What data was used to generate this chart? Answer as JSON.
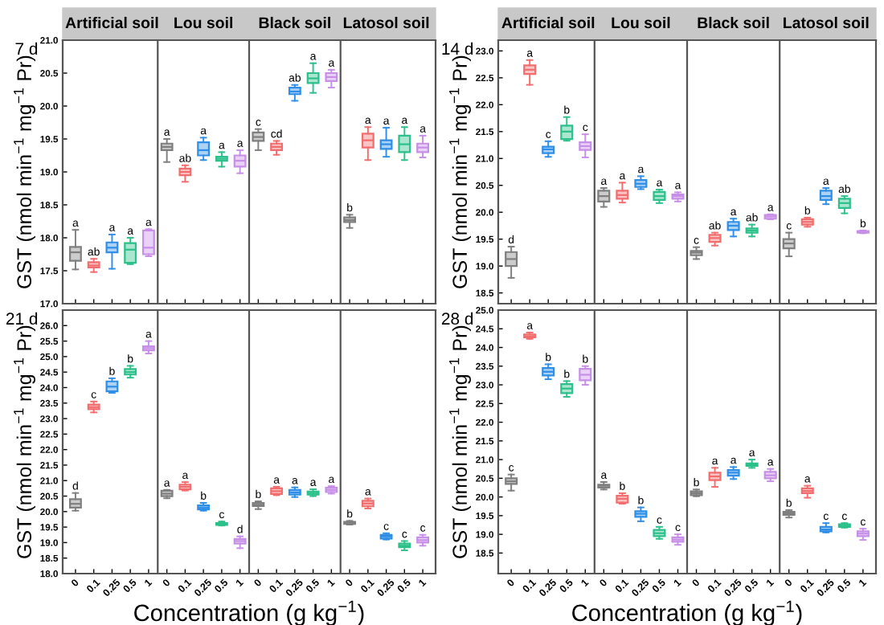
{
  "chart_data": [
    {
      "type": "box",
      "subtitle": "7 d",
      "ylabel": "GST (nmol min$^{−1}$ mg$^{−1}$ Pr)",
      "annotations": [
        "Artificial soil",
        "Lou soil",
        "Black soil",
        "Latosol soil"
      ],
      "categories": [
        null,
        null,
        null,
        null,
        null,
        null,
        null,
        null,
        null,
        null,
        null,
        null,
        null,
        null,
        null,
        null,
        null,
        null,
        null,
        null
      ],
      "colors": [
        "#7f7f7f",
        "#f26d6d",
        "#2f8fe8",
        "#2cc08a",
        "#c88fe8",
        "#7f7f7f",
        "#f26d6d",
        "#2f8fe8",
        "#2cc08a",
        "#c88fe8",
        "#7f7f7f",
        "#f26d6d",
        "#2f8fe8",
        "#2cc08a",
        "#c88fe8",
        "#7f7f7f",
        "#f26d6d",
        "#2f8fe8",
        "#2cc08a",
        "#c88fe8"
      ],
      "ylim": [
        17.0,
        21.0
      ],
      "yticks": [
        {
          "value": 17,
          "label": "17.0"
        },
        17.5,
        {
          "value": 18,
          "label": "18.0"
        },
        18.5,
        {
          "value": 19,
          "label": "19.0"
        },
        19.5,
        {
          "value": 20,
          "label": "20.0"
        },
        20.5,
        {
          "value": 21,
          "label": "21.0"
        }
      ],
      "tick_labels": "y",
      "value_labels": [
        "a",
        "ab",
        "a",
        "a",
        "a",
        "a",
        "ab",
        "a",
        "a",
        "a",
        "c",
        "cd",
        "ab",
        "a",
        "a",
        "b",
        "a",
        "a",
        "a",
        "a"
      ],
      "boxes": [
        {
          "low": 17.52,
          "q1": 17.65,
          "median": 17.78,
          "q3": 17.86,
          "high": 18.12
        },
        {
          "low": 17.48,
          "q1": 17.55,
          "median": 17.58,
          "q3": 17.63,
          "high": 17.68
        },
        {
          "low": 17.53,
          "q1": 17.78,
          "median": 17.85,
          "q3": 17.93,
          "high": 18.05
        },
        {
          "low": 17.6,
          "q1": 17.62,
          "median": 17.82,
          "q3": 17.92,
          "high": 18.0
        },
        {
          "low": 17.72,
          "q1": 17.75,
          "median": 17.85,
          "q3": 18.11,
          "high": 18.13
        },
        {
          "low": 19.15,
          "q1": 19.33,
          "median": 19.38,
          "q3": 19.43,
          "high": 19.5
        },
        {
          "low": 18.85,
          "q1": 18.95,
          "median": 19.0,
          "q3": 19.05,
          "high": 19.1
        },
        {
          "low": 19.18,
          "q1": 19.25,
          "median": 19.33,
          "q3": 19.45,
          "high": 19.52
        },
        {
          "low": 19.08,
          "q1": 19.17,
          "median": 19.2,
          "q3": 19.23,
          "high": 19.3
        },
        {
          "low": 18.98,
          "q1": 19.08,
          "median": 19.17,
          "q3": 19.25,
          "high": 19.33
        },
        {
          "low": 19.33,
          "q1": 19.47,
          "median": 19.53,
          "q3": 19.6,
          "high": 19.65
        },
        {
          "low": 19.26,
          "q1": 19.33,
          "median": 19.38,
          "q3": 19.43,
          "high": 19.47
        },
        {
          "low": 20.08,
          "q1": 20.18,
          "median": 20.22,
          "q3": 20.28,
          "high": 20.32
        },
        {
          "low": 20.2,
          "q1": 20.35,
          "median": 20.42,
          "q3": 20.5,
          "high": 20.65
        },
        {
          "low": 20.28,
          "q1": 20.38,
          "median": 20.44,
          "q3": 20.5,
          "high": 20.55
        },
        {
          "low": 18.15,
          "q1": 18.24,
          "median": 18.27,
          "q3": 18.31,
          "high": 18.35
        },
        {
          "low": 19.18,
          "q1": 19.37,
          "median": 19.48,
          "q3": 19.58,
          "high": 19.68
        },
        {
          "low": 19.23,
          "q1": 19.35,
          "median": 19.42,
          "q3": 19.48,
          "high": 19.67
        },
        {
          "low": 19.18,
          "q1": 19.3,
          "median": 19.42,
          "q3": 19.55,
          "high": 19.68
        },
        {
          "low": 19.22,
          "q1": 19.3,
          "median": 19.37,
          "q3": 19.43,
          "high": 19.55
        }
      ]
    },
    {
      "type": "box",
      "subtitle": "14 d",
      "ylabel": "GST (nmol min$^{−1}$ mg$^{−1}$ Pr)",
      "annotations": [
        "Artificial soil",
        "Lou soil",
        "Black soil",
        "Latosol soil"
      ],
      "categories": [
        null,
        null,
        null,
        null,
        null,
        null,
        null,
        null,
        null,
        null,
        null,
        null,
        null,
        null,
        null,
        null,
        null,
        null,
        null,
        null
      ],
      "colors": [
        "#7f7f7f",
        "#f26d6d",
        "#2f8fe8",
        "#2cc08a",
        "#c88fe8",
        "#7f7f7f",
        "#f26d6d",
        "#2f8fe8",
        "#2cc08a",
        "#c88fe8",
        "#7f7f7f",
        "#f26d6d",
        "#2f8fe8",
        "#2cc08a",
        "#c88fe8",
        "#7f7f7f",
        "#f26d6d",
        "#2f8fe8",
        "#2cc08a",
        "#c88fe8"
      ],
      "ylim": [
        18.3,
        23.2
      ],
      "yticks": [
        18.5,
        {
          "value": 19,
          "label": "19.0"
        },
        19.5,
        {
          "value": 20,
          "label": "20.0"
        },
        20.5,
        {
          "value": 21,
          "label": "21.0"
        },
        21.5,
        {
          "value": 22,
          "label": "22.0"
        },
        22.5,
        {
          "value": 23,
          "label": "23.0"
        }
      ],
      "tick_labels": "y",
      "value_labels": [
        "d",
        "a",
        "c",
        "b",
        "c",
        "a",
        "a",
        "a",
        "a",
        "a",
        "c",
        "ab",
        "a",
        "ab",
        "a",
        "c",
        "b",
        "a",
        "ab",
        "b"
      ],
      "boxes": [
        {
          "low": 18.78,
          "q1": 19.0,
          "median": 19.13,
          "q3": 19.26,
          "high": 19.36
        },
        {
          "low": 22.37,
          "q1": 22.57,
          "median": 22.65,
          "q3": 22.73,
          "high": 22.83
        },
        {
          "low": 21.03,
          "q1": 21.1,
          "median": 21.17,
          "q3": 21.22,
          "high": 21.32
        },
        {
          "low": 21.33,
          "q1": 21.36,
          "median": 21.5,
          "q3": 21.61,
          "high": 21.77
        },
        {
          "low": 21.02,
          "q1": 21.16,
          "median": 21.23,
          "q3": 21.3,
          "high": 21.45
        },
        {
          "low": 20.1,
          "q1": 20.2,
          "median": 20.3,
          "q3": 20.4,
          "high": 20.45
        },
        {
          "low": 20.18,
          "q1": 20.25,
          "median": 20.32,
          "q3": 20.4,
          "high": 20.55
        },
        {
          "low": 20.43,
          "q1": 20.47,
          "median": 20.53,
          "q3": 20.6,
          "high": 20.67
        },
        {
          "low": 20.17,
          "q1": 20.23,
          "median": 20.3,
          "q3": 20.38,
          "high": 20.42
        },
        {
          "low": 20.2,
          "q1": 20.25,
          "median": 20.3,
          "q3": 20.33,
          "high": 20.37
        },
        {
          "low": 19.13,
          "q1": 19.2,
          "median": 19.25,
          "q3": 19.28,
          "high": 19.35
        },
        {
          "low": 19.38,
          "q1": 19.45,
          "median": 19.52,
          "q3": 19.58,
          "high": 19.62
        },
        {
          "low": 19.55,
          "q1": 19.67,
          "median": 19.75,
          "q3": 19.82,
          "high": 19.88
        },
        {
          "low": 19.55,
          "q1": 19.62,
          "median": 19.66,
          "q3": 19.7,
          "high": 19.77
        },
        {
          "low": 19.87,
          "q1": 19.88,
          "median": 19.92,
          "q3": 19.95,
          "high": 19.96
        },
        {
          "low": 19.18,
          "q1": 19.33,
          "median": 19.42,
          "q3": 19.5,
          "high": 19.62
        },
        {
          "low": 19.73,
          "q1": 19.77,
          "median": 19.82,
          "q3": 19.87,
          "high": 19.9
        },
        {
          "low": 20.15,
          "q1": 20.23,
          "median": 20.3,
          "q3": 20.4,
          "high": 20.45
        },
        {
          "low": 19.98,
          "q1": 20.08,
          "median": 20.17,
          "q3": 20.25,
          "high": 20.3
        },
        {
          "low": 19.61,
          "q1": 19.62,
          "median": 19.63,
          "q3": 19.65,
          "high": 19.66
        }
      ]
    },
    {
      "type": "box",
      "subtitle": "21 d",
      "ylabel": "GST (nmol min$^{−1}$ mg$^{−1}$ Pr)",
      "xlabel": "Concentration (g kg$^{−1}$)",
      "categories": [
        "0",
        "0.1",
        "0.25",
        "0.5",
        "1",
        "0",
        "0.1",
        "0.25",
        "0.5",
        "1",
        "0",
        "0.1",
        "0.25",
        "0.5",
        "1",
        "0",
        "0.1",
        "0.25",
        "0.5",
        "1"
      ],
      "colors": [
        "#7f7f7f",
        "#f26d6d",
        "#2f8fe8",
        "#2cc08a",
        "#c88fe8",
        "#7f7f7f",
        "#f26d6d",
        "#2f8fe8",
        "#2cc08a",
        "#c88fe8",
        "#7f7f7f",
        "#f26d6d",
        "#2f8fe8",
        "#2cc08a",
        "#c88fe8",
        "#7f7f7f",
        "#f26d6d",
        "#2f8fe8",
        "#2cc08a",
        "#c88fe8"
      ],
      "ylim": [
        18.0,
        26.5
      ],
      "yticks": [
        {
          "value": 18,
          "label": "18.0"
        },
        18.5,
        {
          "value": 19,
          "label": "19.0"
        },
        19.5,
        {
          "value": 20,
          "label": "20.0"
        },
        20.5,
        {
          "value": 21,
          "label": "21.0"
        },
        21.5,
        {
          "value": 22,
          "label": "22.0"
        },
        22.5,
        {
          "value": 23,
          "label": "23.0"
        },
        23.5,
        {
          "value": 24,
          "label": "24.0"
        },
        24.5,
        {
          "value": 25,
          "label": "25.0"
        },
        25.5,
        {
          "value": 26,
          "label": "26.0"
        }
      ],
      "value_labels": [
        "d",
        "c",
        "b",
        "b",
        "a",
        "a",
        "a",
        "b",
        "c",
        "d",
        "b",
        "a",
        "a",
        "a",
        "a",
        "b",
        "a",
        "c",
        "c",
        "c"
      ],
      "boxes": [
        {
          "low": 20.03,
          "q1": 20.13,
          "median": 20.25,
          "q3": 20.4,
          "high": 20.6
        },
        {
          "low": 23.2,
          "q1": 23.3,
          "median": 23.37,
          "q3": 23.45,
          "high": 23.55
        },
        {
          "low": 23.83,
          "q1": 23.88,
          "median": 24.03,
          "q3": 24.2,
          "high": 24.3
        },
        {
          "low": 24.32,
          "q1": 24.42,
          "median": 24.5,
          "q3": 24.6,
          "high": 24.7
        },
        {
          "low": 25.1,
          "q1": 25.2,
          "median": 25.27,
          "q3": 25.33,
          "high": 25.5
        },
        {
          "low": 20.43,
          "q1": 20.5,
          "median": 20.58,
          "q3": 20.67,
          "high": 20.7
        },
        {
          "low": 20.68,
          "q1": 20.72,
          "median": 20.8,
          "q3": 20.87,
          "high": 20.95
        },
        {
          "low": 20.03,
          "q1": 20.07,
          "median": 20.13,
          "q3": 20.2,
          "high": 20.28
        },
        {
          "low": 19.55,
          "q1": 19.57,
          "median": 19.6,
          "q3": 19.63,
          "high": 19.68
        },
        {
          "low": 18.82,
          "q1": 18.97,
          "median": 19.05,
          "q3": 19.12,
          "high": 19.2
        },
        {
          "low": 20.08,
          "q1": 20.18,
          "median": 20.22,
          "q3": 20.28,
          "high": 20.33
        },
        {
          "low": 20.53,
          "q1": 20.57,
          "median": 20.66,
          "q3": 20.75,
          "high": 20.8
        },
        {
          "low": 20.47,
          "q1": 20.55,
          "median": 20.62,
          "q3": 20.7,
          "high": 20.78
        },
        {
          "low": 20.5,
          "q1": 20.55,
          "median": 20.6,
          "q3": 20.65,
          "high": 20.72
        },
        {
          "low": 20.58,
          "q1": 20.63,
          "median": 20.7,
          "q3": 20.77,
          "high": 20.82
        },
        {
          "low": 19.58,
          "q1": 19.6,
          "median": 19.63,
          "q3": 19.67,
          "high": 19.7
        },
        {
          "low": 20.1,
          "q1": 20.17,
          "median": 20.26,
          "q3": 20.35,
          "high": 20.42
        },
        {
          "low": 19.1,
          "q1": 19.13,
          "median": 19.2,
          "q3": 19.25,
          "high": 19.3
        },
        {
          "low": 18.75,
          "q1": 18.85,
          "median": 18.9,
          "q3": 18.97,
          "high": 19.05
        },
        {
          "low": 18.9,
          "q1": 19.0,
          "median": 19.08,
          "q3": 19.17,
          "high": 19.25
        }
      ]
    },
    {
      "type": "box",
      "subtitle": "28 d",
      "ylabel": "GST (nmol min$^{−1}$ mg$^{−1}$ Pr)",
      "xlabel": "Concentration (g kg$^{−1}$)",
      "categories": [
        "0",
        "0.1",
        "0.25",
        "0.5",
        "1",
        "0",
        "0.1",
        "0.25",
        "0.5",
        "1",
        "0",
        "0.1",
        "0.25",
        "0.5",
        "1",
        "0",
        "0.1",
        "0.25",
        "0.5",
        "1"
      ],
      "colors": [
        "#7f7f7f",
        "#f26d6d",
        "#2f8fe8",
        "#2cc08a",
        "#c88fe8",
        "#7f7f7f",
        "#f26d6d",
        "#2f8fe8",
        "#2cc08a",
        "#c88fe8",
        "#7f7f7f",
        "#f26d6d",
        "#2f8fe8",
        "#2cc08a",
        "#c88fe8",
        "#7f7f7f",
        "#f26d6d",
        "#2f8fe8",
        "#2cc08a",
        "#c88fe8"
      ],
      "ylim": [
        17.95,
        25.0
      ],
      "yticks": [
        18.5,
        {
          "value": 19,
          "label": "19.0"
        },
        19.5,
        {
          "value": 20,
          "label": "20.0"
        },
        20.5,
        {
          "value": 21,
          "label": "21.0"
        },
        21.5,
        {
          "value": 22,
          "label": "22.0"
        },
        22.5,
        {
          "value": 23,
          "label": "23.0"
        },
        23.5,
        {
          "value": 24,
          "label": "24.0"
        },
        24.5,
        {
          "value": 25,
          "label": "25.0"
        }
      ],
      "value_labels": [
        "c",
        "a",
        "b",
        "b",
        "b",
        "a",
        "b",
        "b",
        "c",
        "c",
        "b",
        "a",
        "a",
        "a",
        "a",
        "b",
        "a",
        "c",
        "c",
        "c"
      ],
      "boxes": [
        {
          "low": 20.17,
          "q1": 20.35,
          "median": 20.42,
          "q3": 20.5,
          "high": 20.6
        },
        {
          "low": 24.23,
          "q1": 24.27,
          "median": 24.3,
          "q3": 24.35,
          "high": 24.4
        },
        {
          "low": 23.15,
          "q1": 23.25,
          "median": 23.35,
          "q3": 23.45,
          "high": 23.55
        },
        {
          "low": 22.68,
          "q1": 22.78,
          "median": 22.9,
          "q3": 23.02,
          "high": 23.1
        },
        {
          "low": 23.0,
          "q1": 23.12,
          "median": 23.27,
          "q3": 23.43,
          "high": 23.5
        },
        {
          "low": 20.2,
          "q1": 20.25,
          "median": 20.3,
          "q3": 20.33,
          "high": 20.4
        },
        {
          "low": 19.82,
          "q1": 19.85,
          "median": 19.95,
          "q3": 20.03,
          "high": 20.1
        },
        {
          "low": 19.35,
          "q1": 19.47,
          "median": 19.55,
          "q3": 19.62,
          "high": 19.72
        },
        {
          "low": 18.88,
          "q1": 18.95,
          "median": 19.03,
          "q3": 19.12,
          "high": 19.2
        },
        {
          "low": 18.72,
          "q1": 18.8,
          "median": 18.86,
          "q3": 18.92,
          "high": 19.0
        },
        {
          "low": 20.02,
          "q1": 20.05,
          "median": 20.1,
          "q3": 20.15,
          "high": 20.2
        },
        {
          "low": 20.27,
          "q1": 20.45,
          "median": 20.55,
          "q3": 20.65,
          "high": 20.78
        },
        {
          "low": 20.48,
          "q1": 20.57,
          "median": 20.65,
          "q3": 20.72,
          "high": 20.8
        },
        {
          "low": 20.78,
          "q1": 20.83,
          "median": 20.87,
          "q3": 20.9,
          "high": 21.0
        },
        {
          "low": 20.42,
          "q1": 20.5,
          "median": 20.58,
          "q3": 20.67,
          "high": 20.75
        },
        {
          "low": 19.45,
          "q1": 19.52,
          "median": 19.56,
          "q3": 19.6,
          "high": 19.65
        },
        {
          "low": 19.98,
          "q1": 20.1,
          "median": 20.16,
          "q3": 20.23,
          "high": 20.3
        },
        {
          "low": 19.05,
          "q1": 19.08,
          "median": 19.13,
          "q3": 19.2,
          "high": 19.3
        },
        {
          "low": 19.18,
          "q1": 19.2,
          "median": 19.23,
          "q3": 19.27,
          "high": 19.3
        },
        {
          "low": 18.85,
          "q1": 18.95,
          "median": 19.02,
          "q3": 19.08,
          "high": 19.15
        }
      ]
    }
  ]
}
